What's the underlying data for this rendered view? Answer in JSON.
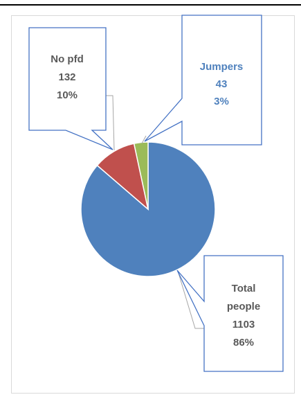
{
  "chart_data": {
    "type": "pie",
    "categories": [
      "Total people",
      "No pfd",
      "Jumpers"
    ],
    "values": [
      1103,
      132,
      43
    ],
    "percents": [
      "86%",
      "10%",
      "3%"
    ],
    "title": "",
    "legend": "none",
    "colors": [
      "#4f81bd",
      "#c0504d",
      "#9bbb59"
    ],
    "label_colors": [
      "#595959",
      "#595959",
      "#4f81bd"
    ],
    "labels": [
      {
        "name": "Total",
        "name2": "people",
        "value": "1103",
        "percent": "86%"
      },
      {
        "name": "No pfd",
        "value": "132",
        "percent": "10%"
      },
      {
        "name": "Jumpers",
        "value": "43",
        "percent": "3%"
      }
    ]
  }
}
